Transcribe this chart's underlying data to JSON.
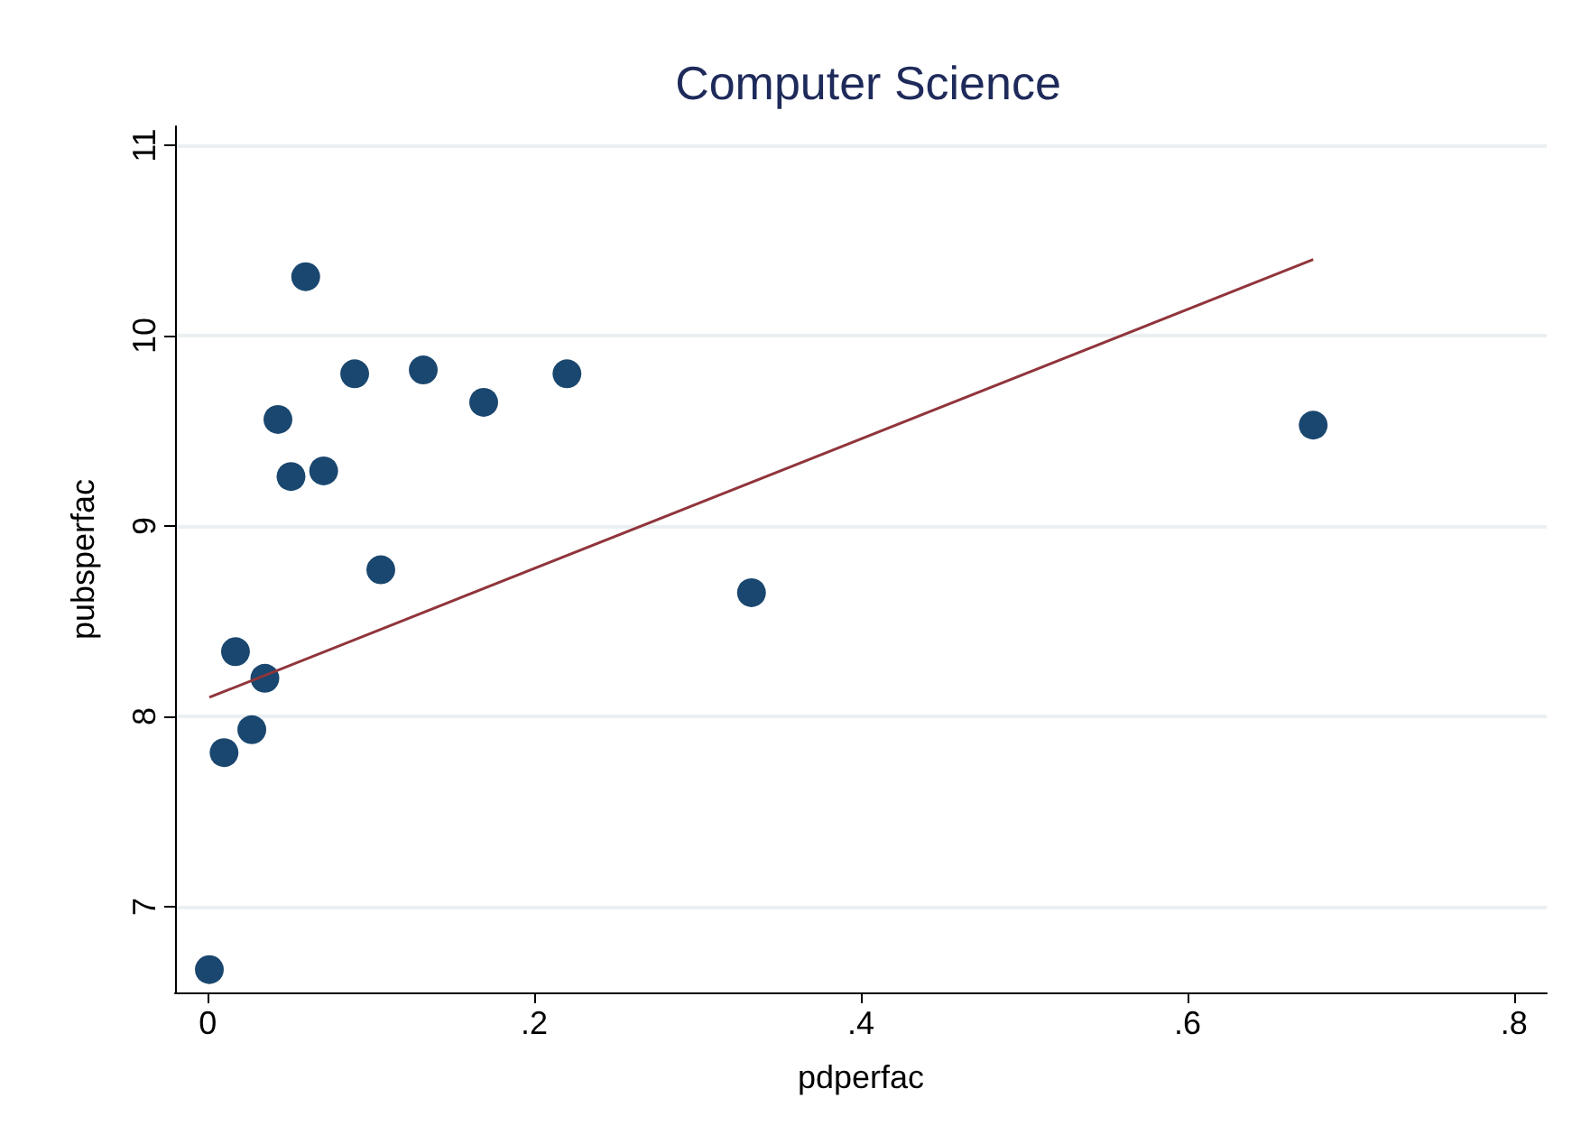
{
  "chart_data": {
    "type": "scatter",
    "title": "Computer Science",
    "xlabel": "pdperfac",
    "ylabel": "pubsperfac",
    "x": [
      0.001,
      0.01,
      0.017,
      0.027,
      0.035,
      0.043,
      0.051,
      0.06,
      0.071,
      0.09,
      0.106,
      0.132,
      0.169,
      0.22,
      0.333,
      0.677
    ],
    "series": [
      {
        "color": "#1a476f",
        "marker": "circle",
        "values": [
          6.67,
          7.81,
          8.34,
          7.93,
          8.2,
          9.56,
          9.26,
          10.31,
          9.29,
          9.8,
          8.77,
          9.82,
          9.65,
          9.8,
          8.65,
          9.53
        ]
      },
      {
        "type": "line",
        "marker": "none",
        "color": "#90353b",
        "x": [
          0.001,
          0.677
        ],
        "values": [
          8.1,
          10.4
        ]
      }
    ],
    "grid": "y",
    "xlim": [
      -0.02,
      0.82
    ],
    "xticks": [
      {
        "value": 0,
        "label": "0"
      },
      {
        "value": 0.2,
        "label": ".2"
      },
      {
        "value": 0.4,
        "label": ".4"
      },
      {
        "value": 0.6,
        "label": ".6"
      },
      {
        "value": 0.8,
        "label": ".8"
      }
    ],
    "ylim": [
      6.55,
      11.1
    ],
    "yticks": [
      7,
      8,
      9,
      10,
      11
    ]
  }
}
